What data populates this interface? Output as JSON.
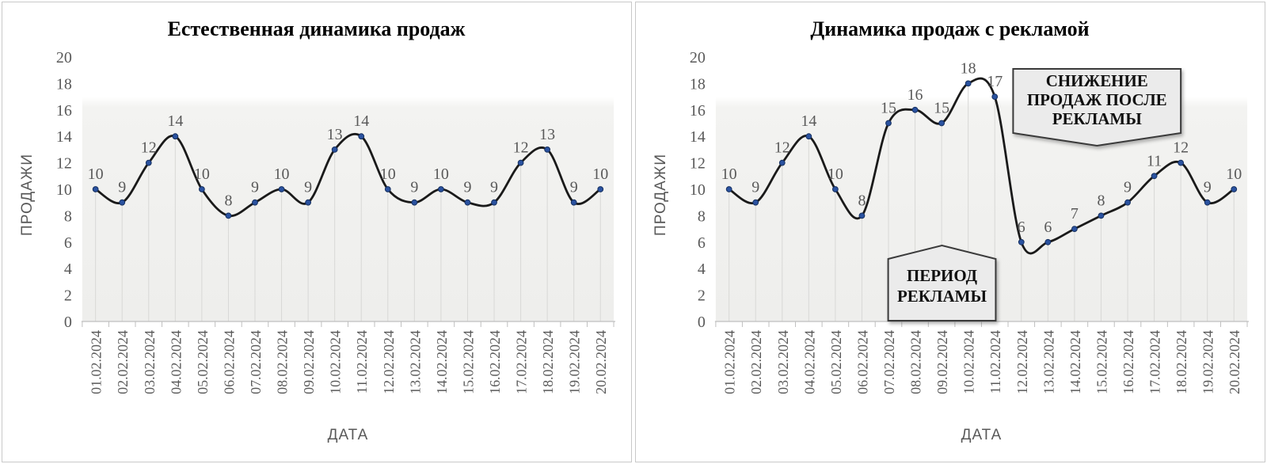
{
  "colors": {
    "line": "#1a1a1a",
    "marker_fill": "#2a52a0",
    "marker_stroke": "#16305f",
    "label_gray": "#595959",
    "axis_line": "#bfbfbf",
    "dropline": "#d8d8d6",
    "plot_bg_top": "#ffffff",
    "plot_bg_bottom": "#eeeeec",
    "callout_fill": "#ebebeb",
    "callout_stroke": "#3a3a3a",
    "title_color": "#000000"
  },
  "chart_data": [
    {
      "type": "line",
      "title": "Естественная динамика продаж",
      "xlabel": "ДАТА",
      "ylabel": "ПРОДАЖИ",
      "ylim": [
        0,
        20
      ],
      "y_ticks": [
        0,
        2,
        4,
        6,
        8,
        10,
        12,
        14,
        16,
        18,
        20
      ],
      "grid": "droplines",
      "legend": "none",
      "categories": [
        "01.02.2024",
        "02.02.2024",
        "03.02.2024",
        "04.02.2024",
        "05.02.2024",
        "06.02.2024",
        "07.02.2024",
        "08.02.2024",
        "09.02.2024",
        "10.02.2024",
        "11.02.2024",
        "12.02.2024",
        "13.02.2024",
        "14.02.2024",
        "15.02.2024",
        "16.02.2024",
        "17.02.2024",
        "18.02.2024",
        "19.02.2024",
        "20.02.2024"
      ],
      "values": [
        10,
        9,
        12,
        14,
        10,
        8,
        9,
        10,
        9,
        13,
        14,
        10,
        9,
        10,
        9,
        9,
        12,
        13,
        9,
        10
      ],
      "annotations": []
    },
    {
      "type": "line",
      "title": "Динамика продаж с рекламой",
      "xlabel": "ДАТА",
      "ylabel": "ПРОДАЖИ",
      "ylim": [
        0,
        20
      ],
      "y_ticks": [
        0,
        2,
        4,
        6,
        8,
        10,
        12,
        14,
        16,
        18,
        20
      ],
      "grid": "droplines",
      "legend": "none",
      "categories": [
        "01.02.2024",
        "02.02.2024",
        "03.02.2024",
        "04.02.2024",
        "05.02.2024",
        "06.02.2024",
        "07.02.2024",
        "08.02.2024",
        "09.02.2024",
        "10.02.2024",
        "11.02.2024",
        "12.02.2024",
        "13.02.2024",
        "14.02.2024",
        "15.02.2024",
        "16.02.2024",
        "17.02.2024",
        "18.02.2024",
        "19.02.2024",
        "20.02.2024"
      ],
      "values": [
        10,
        9,
        12,
        14,
        10,
        8,
        15,
        16,
        15,
        18,
        17,
        6,
        6,
        7,
        8,
        9,
        11,
        12,
        9,
        10
      ],
      "annotations": [
        {
          "id": "ad-period",
          "shape": "pentagon-up",
          "lines": [
            "ПЕРИОД",
            "РЕКЛАМЫ"
          ],
          "x_span": [
            "07.02.2024",
            "11.02.2024"
          ]
        },
        {
          "id": "sales-drop",
          "shape": "banner-down",
          "lines": [
            "СНИЖЕНИЕ",
            "ПРОДАЖ ПОСЛЕ",
            "РЕКЛАМЫ"
          ]
        }
      ]
    }
  ]
}
